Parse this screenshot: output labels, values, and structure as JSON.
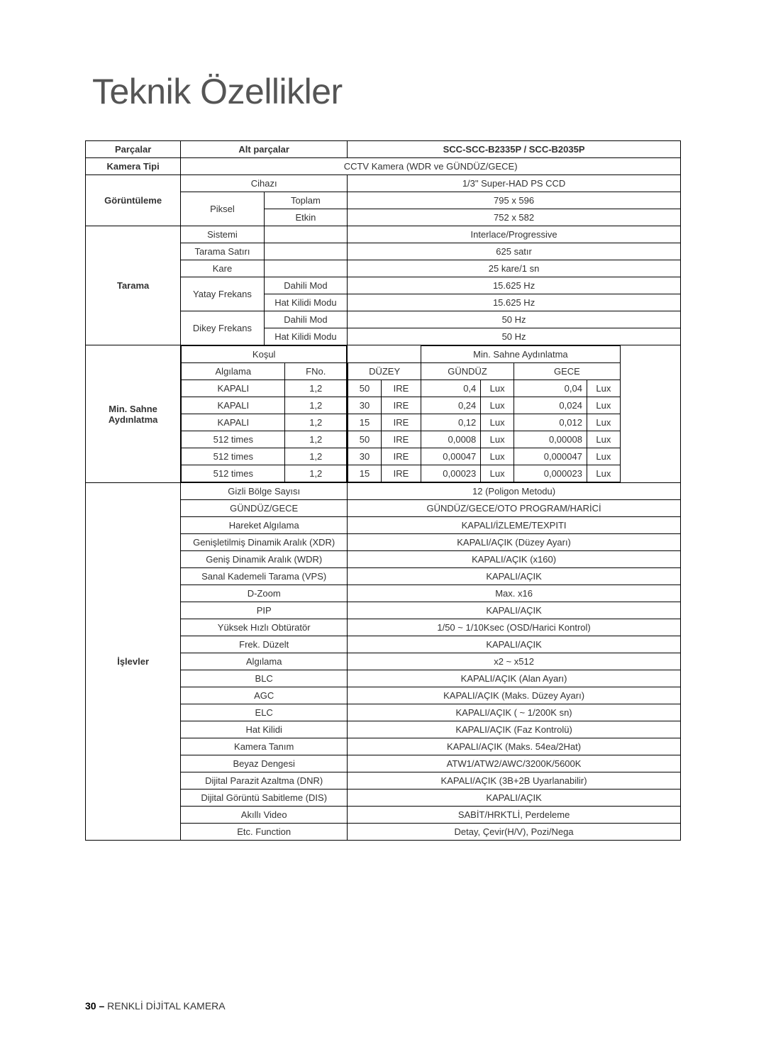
{
  "title": "Teknik Özellikler",
  "footer_prefix": "30 – ",
  "footer_text": "RENKLİ DİJİTAL KAMERA",
  "headers": {
    "parts": "Parçalar",
    "subparts": "Alt parçalar",
    "model": "SCC-SCC-B2335P / SCC-B2035P"
  },
  "labels": {
    "kamera_tipi": "Kamera Tipi",
    "goruntuleme": "Görüntüleme",
    "tarama": "Tarama",
    "min_sahne": "Min. Sahne\nAydınlatma",
    "islevler": "İşlevler"
  },
  "imaging": {
    "cctv": "CCTV Kamera (WDR ve GÜNDÜZ/GECE)",
    "cihazi": "Cihazı",
    "cihazi_v": "1/3\" Super-HAD PS CCD",
    "piksel": "Piksel",
    "toplam": "Toplam",
    "toplam_v": "795 x 596",
    "etkin": "Etkin",
    "etkin_v": "752 x 582"
  },
  "scan": {
    "sistemi": "Sistemi",
    "sistemi_v": "Interlace/Progressive",
    "satiri": "Tarama Satırı",
    "satiri_v": "625 satır",
    "kare": "Kare",
    "kare_v": "25 kare/1 sn",
    "yatay": "Yatay Frekans",
    "dikey": "Dikey Frekans",
    "dahili": "Dahili Mod",
    "hat": "Hat Kilidi Modu",
    "yatay_d": "15.625 Hz",
    "yatay_h": "15.625 Hz",
    "dikey_d": "50 Hz",
    "dikey_h": "50 Hz"
  },
  "msa": {
    "kosul": "Koşul",
    "min_sahne_hdr": "Min. Sahne Aydınlatma",
    "algilama": "Algılama",
    "fno": "FNo.",
    "duzey": "DÜZEY",
    "gunduz": "GÜNDÜZ",
    "gece": "GECE",
    "rows": [
      {
        "alg": "KAPALI",
        "fno": "1,2",
        "lvl": "50",
        "ire": "IRE",
        "g": "0,4",
        "glux": "Lux",
        "n": "0,04",
        "nlux": "Lux"
      },
      {
        "alg": "KAPALI",
        "fno": "1,2",
        "lvl": "30",
        "ire": "IRE",
        "g": "0,24",
        "glux": "Lux",
        "n": "0,024",
        "nlux": "Lux"
      },
      {
        "alg": "KAPALI",
        "fno": "1,2",
        "lvl": "15",
        "ire": "IRE",
        "g": "0,12",
        "glux": "Lux",
        "n": "0,012",
        "nlux": "Lux"
      },
      {
        "alg": "512 times",
        "fno": "1,2",
        "lvl": "50",
        "ire": "IRE",
        "g": "0,0008",
        "glux": "Lux",
        "n": "0,00008",
        "nlux": "Lux"
      },
      {
        "alg": "512 times",
        "fno": "1,2",
        "lvl": "30",
        "ire": "IRE",
        "g": "0,00047",
        "glux": "Lux",
        "n": "0,000047",
        "nlux": "Lux"
      },
      {
        "alg": "512 times",
        "fno": "1,2",
        "lvl": "15",
        "ire": "IRE",
        "g": "0,00023",
        "glux": "Lux",
        "n": "0,000023",
        "nlux": "Lux"
      }
    ]
  },
  "funcs": [
    {
      "l": "Gizli Bölge Sayısı",
      "v": "12 (Poligon Metodu)"
    },
    {
      "l": "GÜNDÜZ/GECE",
      "v": "GÜNDÜZ/GECE/OTO PROGRAM/HARİCİ"
    },
    {
      "l": "Hareket Algılama",
      "v": "KAPALI/İZLEME/TEXPITI"
    },
    {
      "l": "Genişletilmiş Dinamik Aralık (XDR)",
      "v": "KAPALI/AÇIK (Düzey Ayarı)"
    },
    {
      "l": "Geniş Dinamik Aralık (WDR)",
      "v": "KAPALI/AÇIK (x160)"
    },
    {
      "l": "Sanal Kademeli Tarama (VPS)",
      "v": "KAPALI/AÇIK"
    },
    {
      "l": "D-Zoom",
      "v": "Max. x16"
    },
    {
      "l": "PIP",
      "v": "KAPALI/AÇIK"
    },
    {
      "l": "Yüksek Hızlı Obtüratör",
      "v": "1/50 ~ 1/10Ksec (OSD/Harici Kontrol)"
    },
    {
      "l": "Frek. Düzelt",
      "v": "KAPALI/AÇIK"
    },
    {
      "l": "Algılama",
      "v": "x2 ~ x512"
    },
    {
      "l": "BLC",
      "v": "KAPALI/AÇIK (Alan Ayarı)"
    },
    {
      "l": "AGC",
      "v": "KAPALI/AÇIK (Maks. Düzey Ayarı)"
    },
    {
      "l": "ELC",
      "v": "KAPALI/AÇIK ( ~ 1/200K sn)"
    },
    {
      "l": "Hat Kilidi",
      "v": "KAPALI/AÇIK (Faz Kontrolü)"
    },
    {
      "l": "Kamera Tanım",
      "v": "KAPALI/AÇIK (Maks. 54ea/2Hat)"
    },
    {
      "l": "Beyaz Dengesi",
      "v": "ATW1/ATW2/AWC/3200K/5600K"
    },
    {
      "l": "Dijital Parazit Azaltma (DNR)",
      "v": "KAPALI/AÇIK (3B+2B Uyarlanabilir)"
    },
    {
      "l": "Dijital Görüntü Sabitleme (DIS)",
      "v": "KAPALI/AÇIK"
    },
    {
      "l": "Akıllı Video",
      "v": "SABİT/HRKTLİ, Perdeleme"
    },
    {
      "l": "Etc. Function",
      "v": "Detay, Çevir(H/V), Pozi/Nega"
    }
  ]
}
